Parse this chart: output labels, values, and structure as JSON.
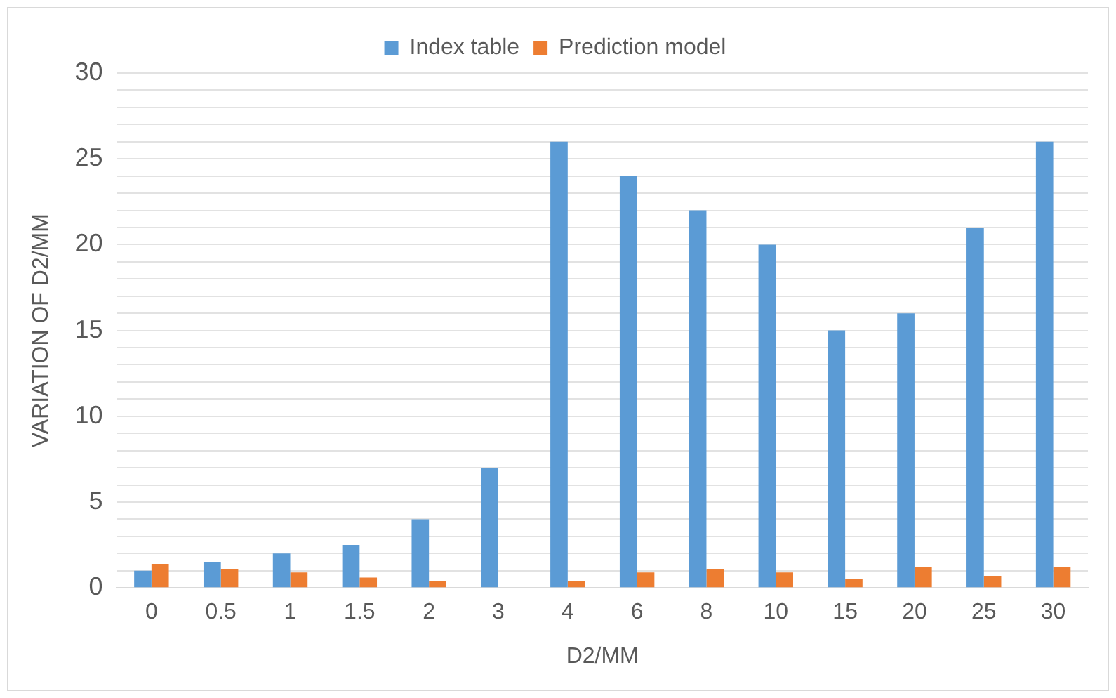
{
  "chart_data": {
    "type": "bar",
    "xlabel": "D2/MM",
    "ylabel": "VARIATION OF D2/MM",
    "categories": [
      "0",
      "0.5",
      "1",
      "1.5",
      "2",
      "3",
      "4",
      "6",
      "8",
      "10",
      "15",
      "20",
      "25",
      "30"
    ],
    "series": [
      {
        "name": "Index table",
        "color": "#5b9bd5",
        "values": [
          1,
          1.5,
          2,
          2.5,
          4,
          7,
          26,
          24,
          22,
          20,
          15,
          16,
          21,
          26
        ]
      },
      {
        "name": "Prediction model",
        "color": "#ed7d31",
        "values": [
          1.4,
          1.1,
          0.9,
          0.6,
          0.4,
          0,
          0.4,
          0.9,
          1.1,
          0.9,
          0.5,
          1.2,
          0.7,
          1.2
        ]
      }
    ],
    "ylim": [
      0,
      30
    ],
    "yticks": [
      0,
      {
        "value": 1,
        "label": null
      },
      {
        "value": 2,
        "label": null
      },
      {
        "value": 3,
        "label": null
      },
      {
        "value": 4,
        "label": null
      },
      5,
      {
        "value": 6,
        "label": null
      },
      {
        "value": 7,
        "label": null
      },
      {
        "value": 8,
        "label": null
      },
      {
        "value": 9,
        "label": null
      },
      10,
      {
        "value": 11,
        "label": null
      },
      {
        "value": 12,
        "label": null
      },
      {
        "value": 13,
        "label": null
      },
      {
        "value": 14,
        "label": null
      },
      15,
      {
        "value": 16,
        "label": null
      },
      {
        "value": 17,
        "label": null
      },
      {
        "value": 18,
        "label": null
      },
      {
        "value": 19,
        "label": null
      },
      20,
      {
        "value": 21,
        "label": null
      },
      {
        "value": 22,
        "label": null
      },
      {
        "value": 23,
        "label": null
      },
      {
        "value": 24,
        "label": null
      },
      25,
      {
        "value": 26,
        "label": null
      },
      {
        "value": 27,
        "label": null
      },
      {
        "value": 28,
        "label": null
      },
      {
        "value": 29,
        "label": null
      },
      30
    ],
    "grid": "y",
    "legend": "top"
  }
}
